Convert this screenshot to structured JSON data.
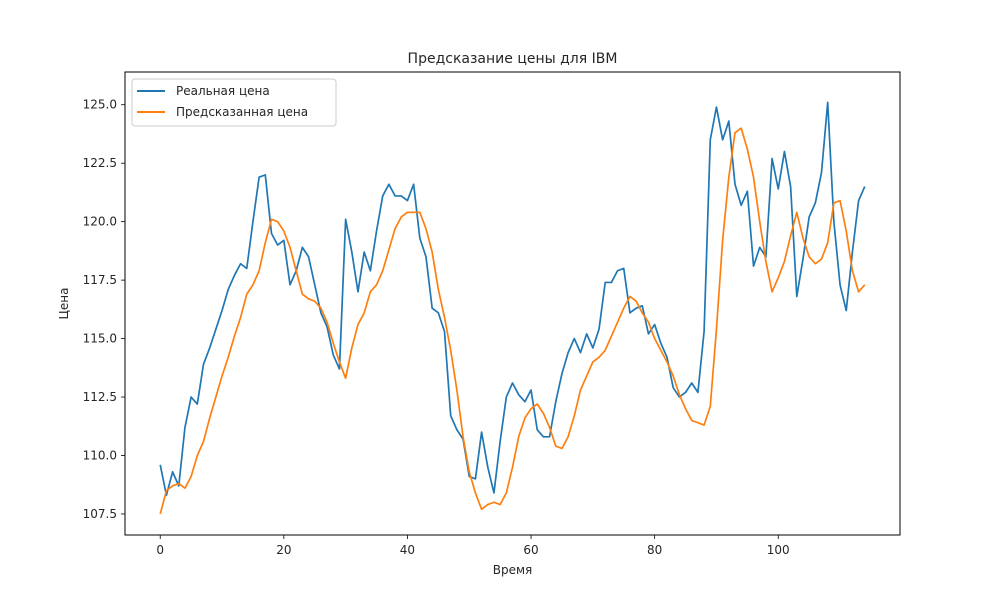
{
  "chart_data": {
    "type": "line",
    "title": "Предсказание цены для IBM",
    "xlabel": "Время",
    "ylabel": "Цена",
    "xlim": [
      -5.7,
      119.7
    ],
    "ylim": [
      106.6,
      126.4
    ],
    "xticks": [
      0,
      20,
      40,
      60,
      80,
      100
    ],
    "yticks": [
      107.5,
      110.0,
      112.5,
      115.0,
      117.5,
      120.0,
      122.5,
      125.0
    ],
    "legend_position": "top-left",
    "grid": false,
    "series": [
      {
        "name": "Реальная цена",
        "color": "#1f77b4",
        "values": [
          109.6,
          108.3,
          109.3,
          108.7,
          111.2,
          112.5,
          112.2,
          113.9,
          114.6,
          115.4,
          116.2,
          117.1,
          117.7,
          118.2,
          118.0,
          120.0,
          121.9,
          122.0,
          119.5,
          119.0,
          119.2,
          117.3,
          117.9,
          118.9,
          118.5,
          117.3,
          116.1,
          115.5,
          114.3,
          113.7,
          120.1,
          118.7,
          117.0,
          118.7,
          117.9,
          119.6,
          121.1,
          121.6,
          121.1,
          121.1,
          120.9,
          121.6,
          119.3,
          118.5,
          116.3,
          116.1,
          115.3,
          111.7,
          111.1,
          110.7,
          109.1,
          109.0,
          111.0,
          109.5,
          108.4,
          110.6,
          112.5,
          113.1,
          112.6,
          112.3,
          112.8,
          111.1,
          110.8,
          110.8,
          112.3,
          113.5,
          114.4,
          115.0,
          114.4,
          115.2,
          114.6,
          115.4,
          117.4,
          117.4,
          117.9,
          118.0,
          116.1,
          116.3,
          116.4,
          115.2,
          115.6,
          114.8,
          114.2,
          112.9,
          112.5,
          112.7,
          113.1,
          112.7,
          115.3,
          123.5,
          124.9,
          123.5,
          124.3,
          121.6,
          120.7,
          121.3,
          118.1,
          118.9,
          118.5,
          122.7,
          121.4,
          123.0,
          121.5,
          116.8,
          118.4,
          120.2,
          120.8,
          122.1,
          125.1,
          120.0,
          117.3,
          116.2,
          118.7,
          120.9,
          121.5
        ]
      },
      {
        "name": "Предсказанная цена",
        "color": "#ff7f0e",
        "values": [
          107.5,
          108.5,
          108.7,
          108.8,
          108.6,
          109.1,
          110.0,
          110.6,
          111.6,
          112.5,
          113.4,
          114.2,
          115.1,
          115.9,
          116.9,
          117.3,
          117.9,
          119.1,
          120.1,
          120.0,
          119.6,
          118.9,
          117.9,
          116.9,
          116.7,
          116.6,
          116.3,
          115.7,
          114.8,
          114.0,
          113.3,
          114.6,
          115.6,
          116.1,
          117.0,
          117.3,
          117.9,
          118.8,
          119.7,
          120.2,
          120.4,
          120.4,
          120.4,
          119.7,
          118.7,
          117.1,
          115.9,
          114.5,
          112.8,
          110.8,
          109.3,
          108.4,
          107.7,
          107.9,
          108.0,
          107.9,
          108.4,
          109.5,
          110.8,
          111.6,
          112.0,
          112.2,
          111.8,
          111.2,
          110.4,
          110.3,
          110.8,
          111.7,
          112.8,
          113.4,
          114.0,
          114.2,
          114.5,
          115.1,
          115.7,
          116.3,
          116.8,
          116.6,
          116.1,
          115.7,
          115.0,
          114.5,
          114.0,
          113.4,
          112.6,
          112.0,
          111.5,
          111.4,
          111.3,
          112.1,
          115.4,
          119.2,
          121.9,
          123.8,
          124.0,
          123.1,
          121.9,
          120.0,
          118.3,
          117.0,
          117.6,
          118.3,
          119.4,
          120.4,
          119.3,
          118.5,
          118.2,
          118.4,
          119.1,
          120.8,
          120.9,
          119.6,
          117.9,
          117.0,
          117.3
        ]
      }
    ]
  }
}
